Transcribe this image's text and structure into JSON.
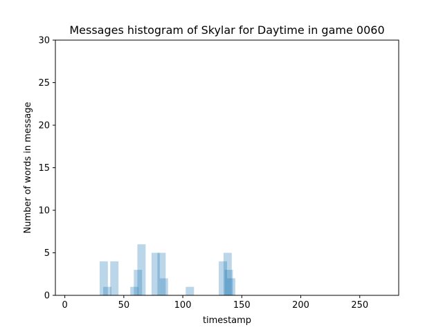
{
  "chart_data": {
    "type": "bar",
    "title": "Messages histogram of Skylar for Daytime in game 0060",
    "xlabel": "timestamp",
    "ylabel": "Number of words in message",
    "xlim": [
      -8,
      283
    ],
    "ylim": [
      0,
      30
    ],
    "xticks": [
      0,
      50,
      100,
      150,
      200,
      250
    ],
    "yticks": [
      0,
      5,
      10,
      15,
      20,
      25,
      30
    ],
    "bar_width": 7,
    "bar_color": "#1f77b4",
    "bar_alpha": 0.3,
    "grid": false,
    "bars": [
      {
        "x": 33,
        "value": 4
      },
      {
        "x": 36,
        "value": 1
      },
      {
        "x": 42,
        "value": 4
      },
      {
        "x": 59,
        "value": 1
      },
      {
        "x": 62,
        "value": 3
      },
      {
        "x": 65,
        "value": 6
      },
      {
        "x": 77,
        "value": 5
      },
      {
        "x": 82,
        "value": 5
      },
      {
        "x": 84,
        "value": 2
      },
      {
        "x": 106,
        "value": 1
      },
      {
        "x": 134,
        "value": 4
      },
      {
        "x": 138,
        "value": 5
      },
      {
        "x": 139,
        "value": 3
      },
      {
        "x": 141,
        "value": 2
      }
    ]
  }
}
